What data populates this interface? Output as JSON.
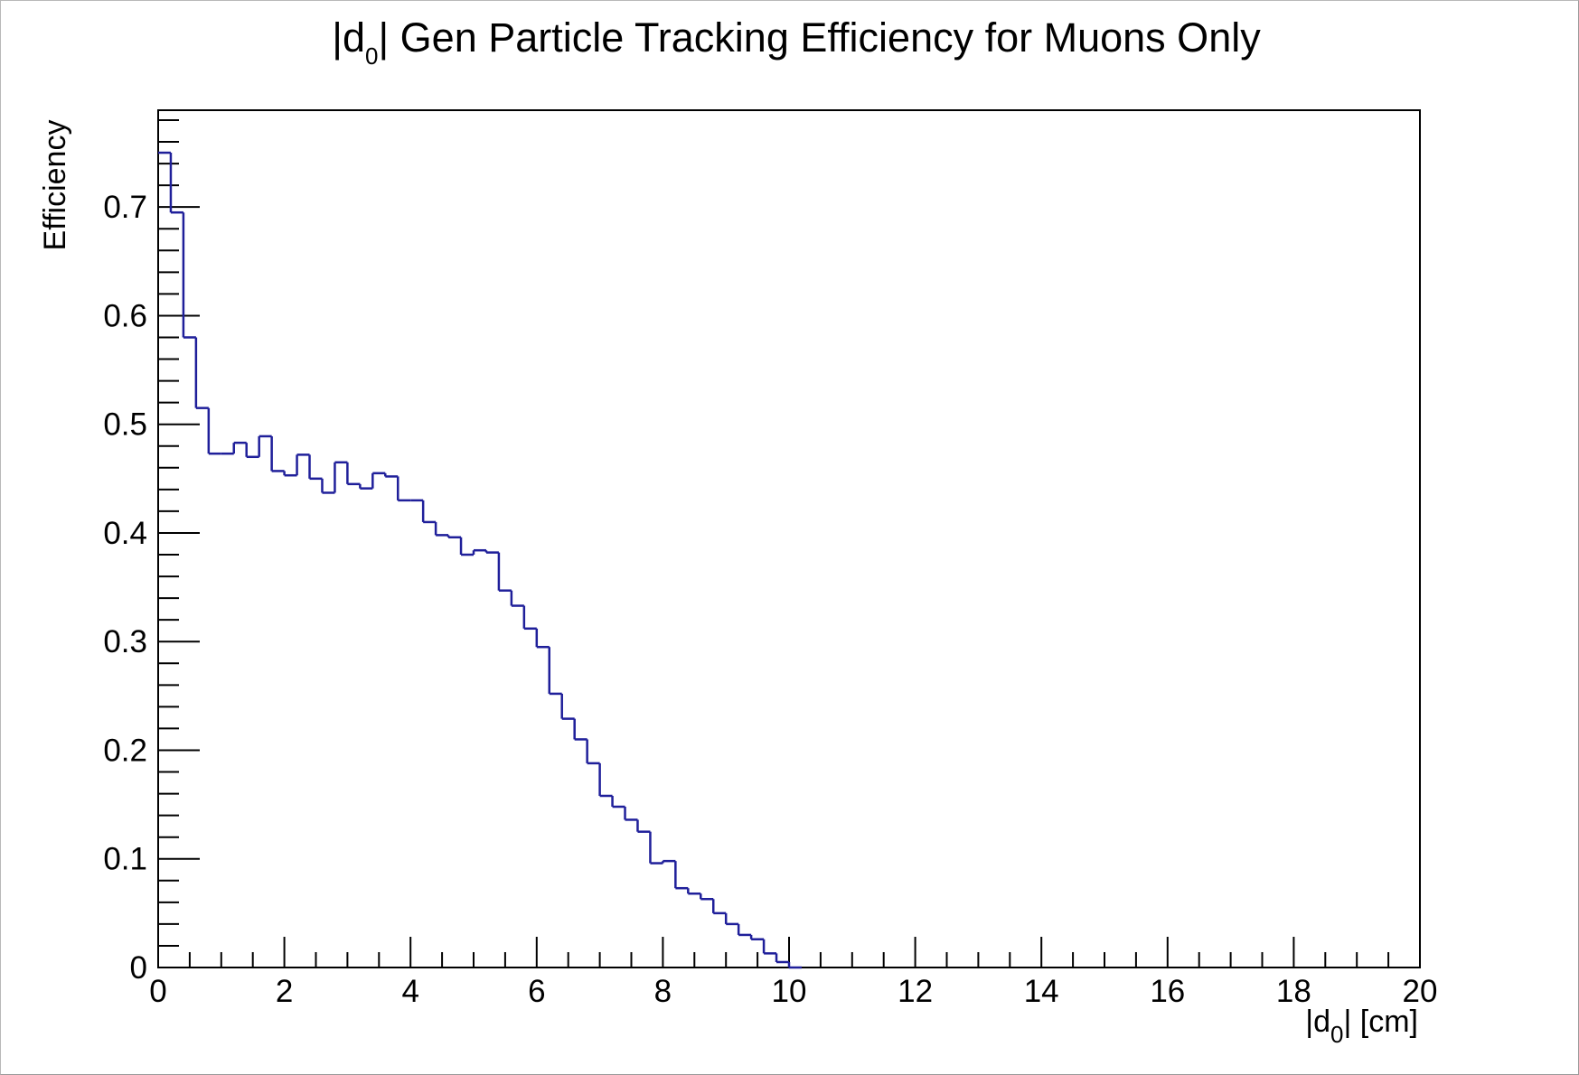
{
  "chart_data": {
    "type": "histogram",
    "title": {
      "prefix": "|d",
      "subscript": "0",
      "suffix": "| Gen Particle Tracking Efficiency for Muons Only"
    },
    "xlabel": {
      "prefix": "|d",
      "subscript": "0",
      "suffix": "| [cm]"
    },
    "ylabel": "Efficiency",
    "xlim": [
      0,
      20
    ],
    "ylim": [
      0,
      0.79
    ],
    "xticks": [
      "0",
      "2",
      "4",
      "6",
      "8",
      "10",
      "12",
      "14",
      "16",
      "18",
      "20"
    ],
    "yticks": [
      "0",
      "0.1",
      "0.2",
      "0.3",
      "0.4",
      "0.5",
      "0.6",
      "0.7"
    ],
    "bin_width": 0.2,
    "series": [
      {
        "values": [
          0.75,
          0.695,
          0.58,
          0.515,
          0.473,
          0.473,
          0.483,
          0.47,
          0.489,
          0.457,
          0.453,
          0.472,
          0.45,
          0.437,
          0.465,
          0.445,
          0.441,
          0.455,
          0.452,
          0.43,
          0.43,
          0.41,
          0.398,
          0.396,
          0.38,
          0.384,
          0.382,
          0.347,
          0.333,
          0.312,
          0.295,
          0.252,
          0.229,
          0.21,
          0.188,
          0.158,
          0.148,
          0.136,
          0.125,
          0.096,
          0.098,
          0.073,
          0.068,
          0.063,
          0.05,
          0.04,
          0.03,
          0.026,
          0.013,
          0.005,
          0.0
        ]
      }
    ],
    "line_color": "#1f1f9a",
    "grid": false
  }
}
